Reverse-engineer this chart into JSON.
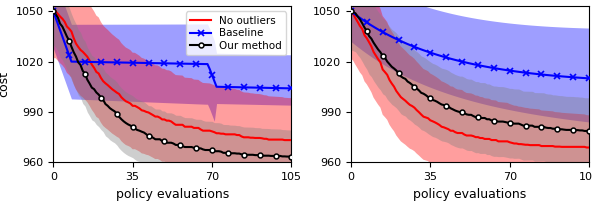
{
  "x_ticks": [
    0,
    35,
    70,
    105
  ],
  "ylim": [
    960,
    1053
  ],
  "y_ticks": [
    960,
    990,
    1020,
    1050
  ],
  "xlabel": "policy evaluations",
  "ylabel": "cost",
  "legend_labels": [
    "No outliers",
    "Baseline",
    "Our method"
  ],
  "n_points": 106,
  "alpha_fill": 0.38,
  "legend_fontsize": 7.5,
  "axis_fontsize": 9,
  "tick_fontsize": 8,
  "linewidth": 1.5,
  "marker_step": 7
}
